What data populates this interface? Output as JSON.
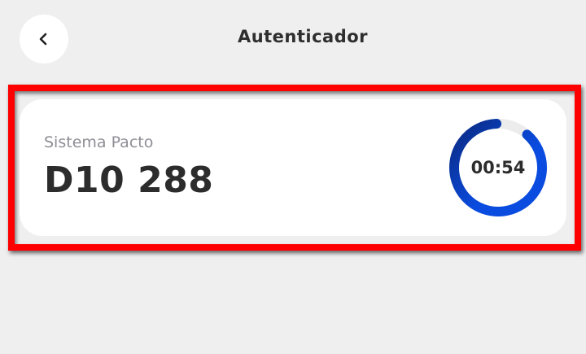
{
  "header": {
    "title": "Autenticador",
    "back_icon": "chevron-left-icon"
  },
  "card": {
    "system_name": "Sistema Pacto",
    "code": "D10 288",
    "timer": {
      "remaining": "00:54",
      "remaining_fraction": 0.9,
      "colors": {
        "start": "#0a2a80",
        "end": "#0a4be0",
        "track": "#ececec"
      }
    }
  },
  "highlight_color": "#ff0000"
}
